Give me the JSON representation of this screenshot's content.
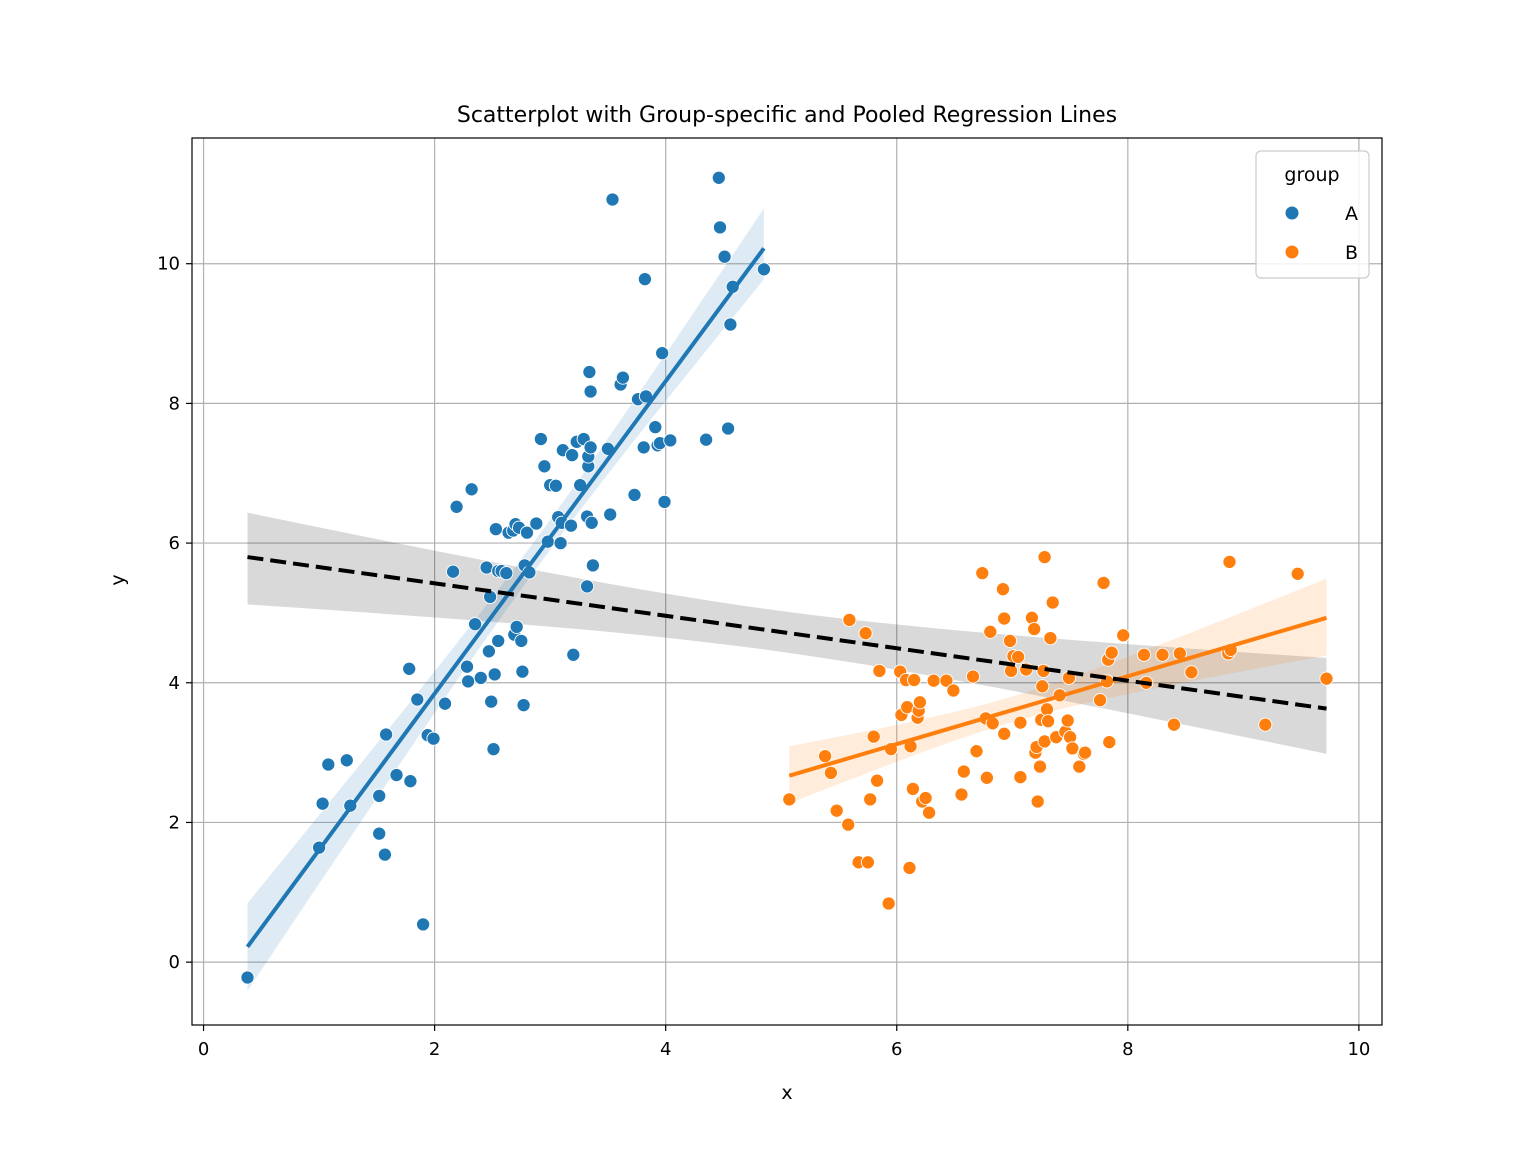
{
  "chart_data": {
    "type": "scatter",
    "title": "Scatterplot with Group-specific and Pooled Regression Lines",
    "xlabel": "x",
    "ylabel": "y",
    "xlim": [
      -0.1,
      10.2
    ],
    "ylim": [
      -0.9,
      11.8
    ],
    "xticks": [
      0,
      2,
      4,
      6,
      8,
      10
    ],
    "yticks": [
      0,
      2,
      4,
      6,
      8,
      10
    ],
    "grid": true,
    "legend": {
      "title": "group",
      "placement": "top-right"
    },
    "colors": {
      "A": "#1f77b4",
      "B": "#ff7f0e",
      "pooled": "#000000"
    },
    "series": [
      {
        "name": "A",
        "points": [
          [
            0.38,
            -0.22
          ],
          [
            1.0,
            1.64
          ],
          [
            1.03,
            2.27
          ],
          [
            1.08,
            2.83
          ],
          [
            1.24,
            2.89
          ],
          [
            1.27,
            2.24
          ],
          [
            1.52,
            2.38
          ],
          [
            1.52,
            1.84
          ],
          [
            1.57,
            1.54
          ],
          [
            1.58,
            3.26
          ],
          [
            1.67,
            2.68
          ],
          [
            1.78,
            4.2
          ],
          [
            1.79,
            2.59
          ],
          [
            1.85,
            3.76
          ],
          [
            1.9,
            0.54
          ],
          [
            1.94,
            3.25
          ],
          [
            1.99,
            3.2
          ],
          [
            2.09,
            3.7
          ],
          [
            2.16,
            5.59
          ],
          [
            2.19,
            6.52
          ],
          [
            2.28,
            4.23
          ],
          [
            2.29,
            4.02
          ],
          [
            2.32,
            6.77
          ],
          [
            2.35,
            4.84
          ],
          [
            2.4,
            4.07
          ],
          [
            2.45,
            5.65
          ],
          [
            2.47,
            4.45
          ],
          [
            2.49,
            3.73
          ],
          [
            2.48,
            5.23
          ],
          [
            2.51,
            3.05
          ],
          [
            2.52,
            4.12
          ],
          [
            2.53,
            6.2
          ],
          [
            2.55,
            4.6
          ],
          [
            2.55,
            5.6
          ],
          [
            2.58,
            5.6
          ],
          [
            2.62,
            5.57
          ],
          [
            2.64,
            6.15
          ],
          [
            2.68,
            6.18
          ],
          [
            2.7,
            6.27
          ],
          [
            2.69,
            4.69
          ],
          [
            2.71,
            4.8
          ],
          [
            2.73,
            6.22
          ],
          [
            2.75,
            4.6
          ],
          [
            2.76,
            4.16
          ],
          [
            2.77,
            3.68
          ],
          [
            2.78,
            5.68
          ],
          [
            2.8,
            6.15
          ],
          [
            2.82,
            5.58
          ],
          [
            2.88,
            6.28
          ],
          [
            2.92,
            7.49
          ],
          [
            2.95,
            7.1
          ],
          [
            2.98,
            6.02
          ],
          [
            3.0,
            6.83
          ],
          [
            3.05,
            6.82
          ],
          [
            3.07,
            6.37
          ],
          [
            3.09,
            6.0
          ],
          [
            3.1,
            6.29
          ],
          [
            3.11,
            7.33
          ],
          [
            3.18,
            6.25
          ],
          [
            3.19,
            7.26
          ],
          [
            3.2,
            4.4
          ],
          [
            3.23,
            7.45
          ],
          [
            3.26,
            6.83
          ],
          [
            3.29,
            7.49
          ],
          [
            3.32,
            5.38
          ],
          [
            3.32,
            6.38
          ],
          [
            3.33,
            7.1
          ],
          [
            3.33,
            7.24
          ],
          [
            3.35,
            7.37
          ],
          [
            3.34,
            8.45
          ],
          [
            3.35,
            8.17
          ],
          [
            3.36,
            6.29
          ],
          [
            3.37,
            5.68
          ],
          [
            3.5,
            7.35
          ],
          [
            3.52,
            6.41
          ],
          [
            3.54,
            10.92
          ],
          [
            3.61,
            8.27
          ],
          [
            3.63,
            8.37
          ],
          [
            3.73,
            6.69
          ],
          [
            3.76,
            8.06
          ],
          [
            3.81,
            7.37
          ],
          [
            3.82,
            9.78
          ],
          [
            3.83,
            8.1
          ],
          [
            3.91,
            7.66
          ],
          [
            3.93,
            7.4
          ],
          [
            3.95,
            7.43
          ],
          [
            3.97,
            8.72
          ],
          [
            3.99,
            6.59
          ],
          [
            4.04,
            7.47
          ],
          [
            4.35,
            7.48
          ],
          [
            4.46,
            11.23
          ],
          [
            4.47,
            10.52
          ],
          [
            4.51,
            10.1
          ],
          [
            4.54,
            7.64
          ],
          [
            4.56,
            9.13
          ],
          [
            4.58,
            9.67
          ],
          [
            4.85,
            9.92
          ]
        ],
        "regression": {
          "x": [
            0.38,
            4.85
          ],
          "y": [
            0.22,
            10.22
          ]
        }
      },
      {
        "name": "B",
        "points": [
          [
            5.07,
            2.33
          ],
          [
            5.38,
            2.95
          ],
          [
            5.43,
            2.71
          ],
          [
            5.48,
            2.17
          ],
          [
            5.58,
            1.97
          ],
          [
            5.59,
            4.9
          ],
          [
            5.67,
            1.43
          ],
          [
            5.73,
            4.71
          ],
          [
            5.75,
            1.43
          ],
          [
            5.77,
            2.33
          ],
          [
            5.8,
            3.23
          ],
          [
            5.83,
            2.6
          ],
          [
            5.85,
            4.17
          ],
          [
            5.93,
            0.84
          ],
          [
            5.95,
            3.05
          ],
          [
            6.03,
            4.16
          ],
          [
            6.04,
            3.54
          ],
          [
            6.08,
            4.04
          ],
          [
            6.09,
            3.65
          ],
          [
            6.11,
            1.35
          ],
          [
            6.12,
            3.09
          ],
          [
            6.14,
            2.48
          ],
          [
            6.15,
            4.04
          ],
          [
            6.18,
            3.5
          ],
          [
            6.19,
            3.6
          ],
          [
            6.2,
            3.72
          ],
          [
            6.22,
            2.3
          ],
          [
            6.25,
            2.35
          ],
          [
            6.28,
            2.14
          ],
          [
            6.32,
            4.03
          ],
          [
            6.43,
            4.03
          ],
          [
            6.49,
            3.89
          ],
          [
            6.56,
            2.4
          ],
          [
            6.58,
            2.73
          ],
          [
            6.66,
            4.09
          ],
          [
            6.69,
            3.02
          ],
          [
            6.74,
            5.57
          ],
          [
            6.77,
            3.49
          ],
          [
            6.78,
            2.64
          ],
          [
            6.81,
            4.73
          ],
          [
            6.83,
            3.42
          ],
          [
            6.92,
            5.34
          ],
          [
            6.93,
            4.92
          ],
          [
            6.93,
            3.27
          ],
          [
            6.98,
            4.6
          ],
          [
            6.99,
            4.17
          ],
          [
            7.01,
            4.38
          ],
          [
            7.05,
            4.37
          ],
          [
            7.07,
            3.43
          ],
          [
            7.07,
            2.65
          ],
          [
            7.12,
            4.19
          ],
          [
            7.17,
            4.93
          ],
          [
            7.19,
            4.77
          ],
          [
            7.2,
            3.0
          ],
          [
            7.21,
            3.08
          ],
          [
            7.22,
            2.3
          ],
          [
            7.24,
            2.8
          ],
          [
            7.25,
            3.47
          ],
          [
            7.26,
            3.95
          ],
          [
            7.27,
            4.17
          ],
          [
            7.28,
            3.16
          ],
          [
            7.28,
            5.8
          ],
          [
            7.3,
            3.62
          ],
          [
            7.31,
            3.45
          ],
          [
            7.33,
            4.64
          ],
          [
            7.35,
            5.15
          ],
          [
            7.38,
            3.22
          ],
          [
            7.41,
            3.82
          ],
          [
            7.46,
            3.3
          ],
          [
            7.48,
            3.46
          ],
          [
            7.49,
            4.07
          ],
          [
            7.5,
            3.22
          ],
          [
            7.52,
            3.06
          ],
          [
            7.58,
            2.8
          ],
          [
            7.62,
            2.98
          ],
          [
            7.63,
            3.0
          ],
          [
            7.76,
            3.75
          ],
          [
            7.79,
            5.43
          ],
          [
            7.82,
            4.02
          ],
          [
            7.83,
            4.33
          ],
          [
            7.84,
            3.15
          ],
          [
            7.86,
            4.43
          ],
          [
            7.96,
            4.68
          ],
          [
            8.14,
            4.4
          ],
          [
            8.16,
            4.0
          ],
          [
            8.3,
            4.4
          ],
          [
            8.4,
            3.4
          ],
          [
            8.45,
            4.42
          ],
          [
            8.55,
            4.15
          ],
          [
            8.87,
            4.42
          ],
          [
            8.88,
            5.73
          ],
          [
            8.89,
            4.47
          ],
          [
            9.19,
            3.4
          ],
          [
            9.47,
            5.56
          ],
          [
            9.72,
            4.06
          ]
        ],
        "regression": {
          "x": [
            5.07,
            9.72
          ],
          "y": [
            2.67,
            4.93
          ]
        }
      }
    ],
    "pooled_regression": {
      "x": [
        0.38,
        9.72
      ],
      "y": [
        5.8,
        3.63
      ]
    }
  }
}
